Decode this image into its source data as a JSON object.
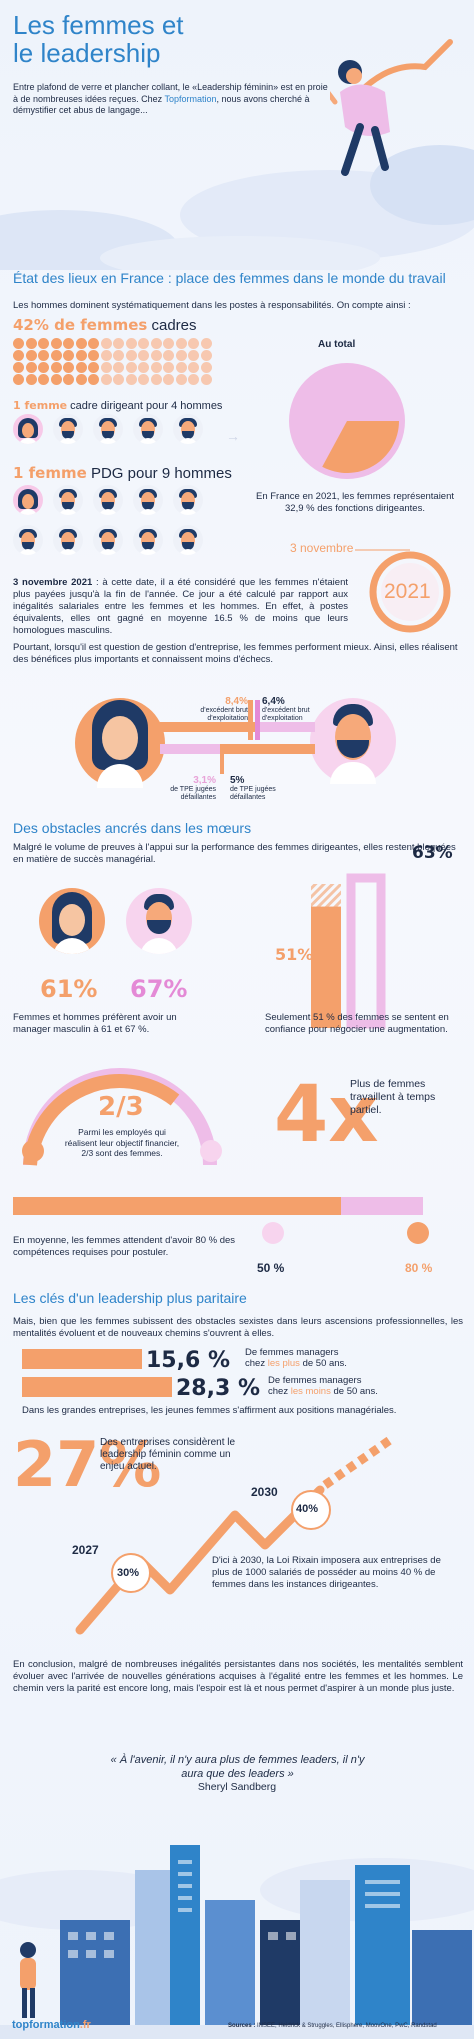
{
  "header": {
    "title_line1": "Les femmes et",
    "title_line2": "le leadership",
    "intro_1": "Entre plafond de verre et plancher collant, le «Leadership féminin» est en proie à de nombreuses idées reçues. Chez ",
    "intro_brand": "Topformation",
    "intro_2": ", nous avons cherché à démystifier cet abus de langage..."
  },
  "section1": {
    "heading": "État des lieux en France : place des femmes dans le monde du travail",
    "intro": "Les hommes dominent systématiquement dans les postes à responsabilités. On compte ainsi :",
    "stat1_value": "42% de femmes",
    "stat1_label": " cadres",
    "women_cadres_percent": 42,
    "stat2_value": "1 femme",
    "stat2_label": " cadre dirigeant pour 4 hommes",
    "stat3_value": "1 femme",
    "stat3_label": " PDG pour 9 hommes",
    "pie_title": "Au total",
    "pie_women_percent": 32.9,
    "pie_caption": "En France en 2021, les femmes représentaient 32,9 % des fonctions dirigeantes.",
    "date_label": "3 novembre",
    "year": "2021",
    "para1_bold": "3 novembre 2021",
    "para1": " : à cette date, il a été considéré que les femmes n'étaient plus payées jusqu'à la fin de l'année. Ce jour a été calculé par rapport aux inégalités salariales entre les femmes et les hommes. En effet, à postes équivalents, elles ont gagné en moyenne 16.5 % de moins que leurs homologues masculins.",
    "para2": "Pourtant, lorsqu'il est question de gestion d'entreprise, les femmes performent mieux. Ainsi, elles réalisent des bénéfices plus importants et connaissent moins d'échecs.",
    "compare": {
      "women_ebe": "8,4%",
      "men_ebe": "6,4%",
      "ebe_label": "d'excédent brut d'exploitation",
      "women_fail": "3,1%",
      "men_fail": "5%",
      "fail_label": "de TPE jugées défaillantes"
    }
  },
  "section2": {
    "heading": "Des obstacles ancrés dans les mœurs",
    "intro": "Malgré le volume de preuves à l'appui sur la performance des femmes dirigeantes, elles restent bloquées en matière de succès managérial.",
    "women_pct": "61%",
    "men_pct": "67%",
    "pref_caption": "Femmes et hommes préfèrent avoir un manager masculin à 61 et 67 %.",
    "bar_small": "51%",
    "bar_big": "63%",
    "bar_small_value": 51,
    "bar_big_value": 63,
    "conf_caption": "Seulement 51 % des femmes se sentent en confiance pour négocier une augmentation.",
    "fraction": "2/3",
    "fraction_caption": "Parmi les employés qui réalisent leur objectif financier, 2/3 sont des femmes.",
    "big4x": "4x",
    "partial_caption": "Plus de femmes travaillent à temps partiel.",
    "skills_caption": "En moyenne, les femmes attendent d'avoir 80 % des compétences requises pour postuler.",
    "men_skill": "50 %",
    "women_skill": "80 %",
    "men_skill_value": 50,
    "women_skill_value": 80
  },
  "section3": {
    "heading": "Les clés d'un leadership plus paritaire",
    "intro": "Mais, bien que les femmes subissent des obstacles sexistes dans leurs ascensions professionnelles, les mentalités évoluent et de nouveaux chemins s'ouvrent à elles.",
    "stat_a": "15,6 %",
    "stat_a_l1": "De femmes managers",
    "stat_a_l2a": "chez ",
    "stat_a_hl": "les plus",
    "stat_a_l2b": " de 50 ans.",
    "stat_b": "28,3 %",
    "stat_b_l1": "De femmes managers",
    "stat_b_l2a": "chez ",
    "stat_b_hl": "les moins",
    "stat_b_l2b": " de 50 ans.",
    "young_caption": "Dans les grandes entreprises, les jeunes femmes s'affirment aux positions managériales.",
    "big27": "27%",
    "big27_caption": "Des entreprises considèrent le leadership féminin comme un enjeu actuel.",
    "year_a": "2027",
    "year_a_pct": "30%",
    "year_b": "2030",
    "year_b_pct": "40%",
    "rixain_caption": "D'ici à 2030, la Loi Rixain imposera aux entreprises de plus de 1000 salariés de posséder au moins 40 % de femmes dans les instances dirigeantes.",
    "conclusion": "En conclusion, malgré de nombreuses inégalités persistantes dans nos sociétés, les mentalités semblent évoluer avec l'arrivée de nouvelles générations acquises à l'égalité entre les femmes et les hommes. Le chemin vers la parité est encore long, mais l'espoir est là et nous permet d'aspirer à un monde plus juste."
  },
  "quote": {
    "text": "« À l'avenir, il n'y aura plus de femmes leaders, il n'y aura que des leaders »",
    "author": "Sheryl Sandberg"
  },
  "footer": {
    "brand": "topformation",
    "brand_suffix": ".fr",
    "sources_label": "Sources :",
    "sources": " INSEE, Heidrick & Struggles, Ellisphere, MoovOne, PwC, Randstad"
  },
  "colors": {
    "blue": "#2f84c9",
    "orange": "#f4a06b",
    "pink": "#eebde8",
    "navy": "#1f3a66"
  }
}
